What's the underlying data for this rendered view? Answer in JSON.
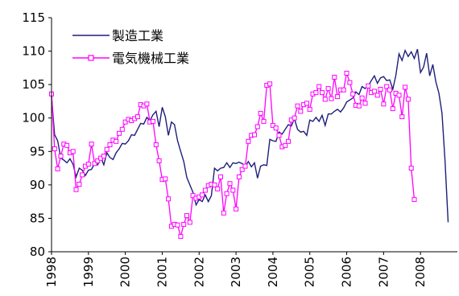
{
  "chart_data": {
    "type": "line",
    "title": "",
    "xlabel": "",
    "ylabel": "",
    "ylim": [
      80,
      115
    ],
    "y_ticks": [
      "80",
      "85",
      "90",
      "95",
      "100",
      "105",
      "110",
      "115"
    ],
    "x_ticks": [
      "1998",
      "1999",
      "2000",
      "2001",
      "2002",
      "2003",
      "2004",
      "2005",
      "2006",
      "2007",
      "2008"
    ],
    "x_start": "1998-01",
    "grid": false,
    "legend": "top-left",
    "series": [
      {
        "name": "製造工業",
        "color": "#1f1f7a",
        "marker": "none",
        "values": [
          103.2,
          97.5,
          96.6,
          94.0,
          93.7,
          93.3,
          93.9,
          93.1,
          91.2,
          92.5,
          92.2,
          91.4,
          92.2,
          92.3,
          93.2,
          93.0,
          94.1,
          93.0,
          94.8,
          94.1,
          93.8,
          94.8,
          95.4,
          96.2,
          96.1,
          96.6,
          97.5,
          97.4,
          98.3,
          99.2,
          99.1,
          100.1,
          99.6,
          100.5,
          101.0,
          98.7,
          101.6,
          100.2,
          97.4,
          99.4,
          99.0,
          96.6,
          95.0,
          93.5,
          91.1,
          90.0,
          88.9,
          87.0,
          87.8,
          87.5,
          88.5,
          87.5,
          88.4,
          92.5,
          92.1,
          92.5,
          92.6,
          93.3,
          92.6,
          93.3,
          93.2,
          93.4,
          93.2,
          92.8,
          93.5,
          92.7,
          93.3,
          91.0,
          92.8,
          93.0,
          92.9,
          96.8,
          96.6,
          96.5,
          97.9,
          97.6,
          98.3,
          99.0,
          98.8,
          99.9,
          98.3,
          97.9,
          98.0,
          97.4,
          99.7,
          99.5,
          100.1,
          99.5,
          100.4,
          98.9,
          100.6,
          100.6,
          101.0,
          101.3,
          100.9,
          101.5,
          102.4,
          102.7,
          103.0,
          103.9,
          103.5,
          104.7,
          104.4,
          104.8,
          105.6,
          106.3,
          105.2,
          106.0,
          106.2,
          105.6,
          105.7,
          104.3,
          106.4,
          109.6,
          108.6,
          110.1,
          109.2,
          109.9,
          108.9,
          110.3,
          106.8,
          107.6,
          109.7,
          106.3,
          108.0,
          105.4,
          103.7,
          100.7,
          93.5,
          84.4
        ]
      },
      {
        "name": "電気機械工業",
        "color": "#ff00ff",
        "marker": "square",
        "values": [
          103.6,
          95.4,
          92.4,
          94.3,
          96.1,
          95.9,
          94.8,
          95.0,
          89.3,
          90.1,
          91.5,
          92.8,
          93.1,
          96.1,
          93.2,
          93.6,
          94.0,
          94.3,
          95.3,
          96.0,
          96.7,
          96.5,
          97.7,
          98.3,
          99.4,
          99.8,
          99.6,
          99.9,
          100.2,
          102.0,
          101.8,
          102.1,
          99.4,
          99.5,
          96.0,
          93.6,
          90.8,
          90.9,
          87.9,
          83.8,
          84.1,
          84.0,
          82.3,
          84.1,
          85.4,
          84.4,
          88.4,
          88.0,
          88.2,
          88.5,
          89.2,
          89.9,
          90.1,
          90.0,
          89.4,
          91.2,
          85.8,
          88.7,
          90.2,
          89.2,
          86.4,
          91.2,
          92.3,
          92.8,
          96.5,
          97.4,
          97.5,
          98.7,
          100.7,
          99.5,
          104.9,
          105.1,
          98.9,
          98.5,
          97.4,
          95.7,
          95.9,
          96.5,
          99.7,
          100.0,
          101.8,
          101.0,
          102.0,
          102.2,
          101.3,
          103.6,
          103.8,
          104.7,
          103.8,
          102.8,
          104.4,
          102.9,
          106.1,
          103.2,
          104.2,
          104.2,
          106.7,
          105.3,
          103.6,
          101.9,
          101.8,
          103.0,
          102.2,
          104.8,
          103.8,
          104.0,
          103.4,
          104.3,
          102.1,
          104.7,
          104.2,
          101.4,
          103.7,
          103.4,
          100.2,
          104.6,
          102.8,
          92.5,
          87.8
        ]
      }
    ]
  }
}
